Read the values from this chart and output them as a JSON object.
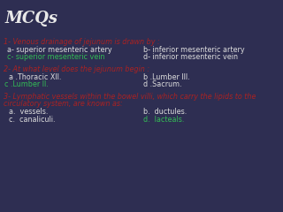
{
  "background_color": "#2e2e52",
  "title": "MCQs",
  "title_color": "#e8e8e8",
  "title_fontsize": 14,
  "q_color": "#aa2222",
  "ans_color": "#dddddd",
  "green_color": "#33bb55",
  "q1_label": "1- Venous drainage of jejunum is drawn by :",
  "q1_a": "a- superior mesenteric artery",
  "q1_b": "b- inferior mesenteric artery",
  "q1_c": "c- superior mesenteric vein",
  "q1_d": "d- inferior mesenteric vein",
  "q2_label": "2- At what level does the jejunum begin :",
  "q2_a": "a .Thoracic XII.",
  "q2_b": "b .Lumber III.",
  "q2_c": "c .Lumber II.",
  "q2_d": "d .Sacrum.",
  "q3_label": "3- Lymphatic vessels within the bowel villi, which carry the lipids to the",
  "q3_label2": "circulatory system, are known as:",
  "q3_a": "a.  vessels.",
  "q3_b": "b.  ductules.",
  "q3_c": "c.  canaliculi.",
  "q3_d": "d.  lacteals.",
  "fs_title": 13,
  "fs_q": 5.8,
  "fs_a": 5.8
}
